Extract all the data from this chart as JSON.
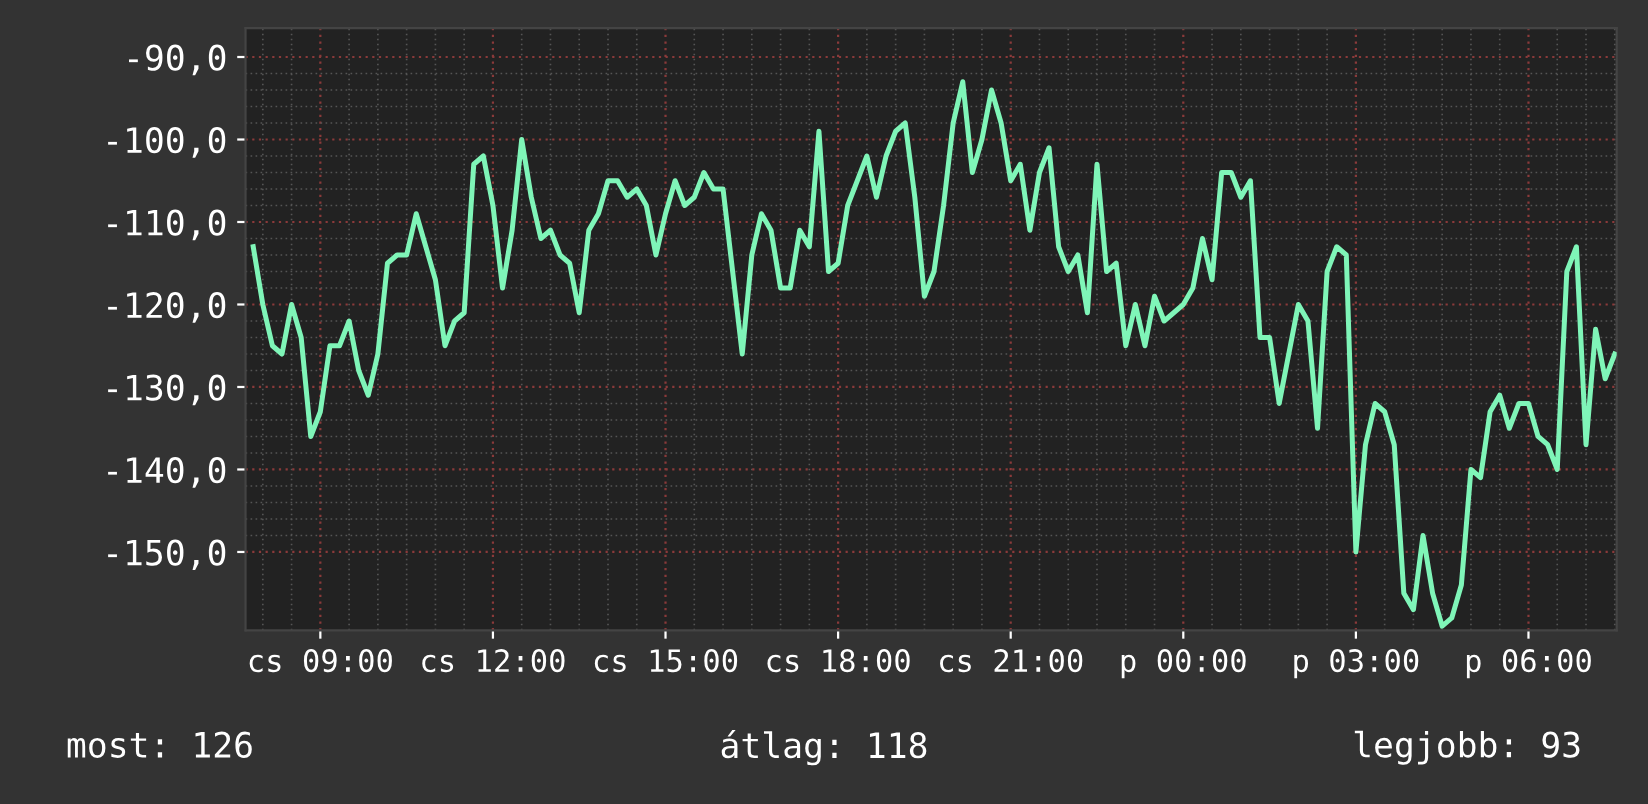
{
  "chart_data": {
    "type": "line",
    "categories": [
      null,
      null,
      null,
      null,
      null,
      null,
      null,
      "cs 09:00",
      null,
      null,
      null,
      null,
      null,
      null,
      null,
      null,
      null,
      null,
      null,
      null,
      null,
      null,
      null,
      null,
      null,
      "cs 12:00",
      null,
      null,
      null,
      null,
      null,
      null,
      null,
      null,
      null,
      null,
      null,
      null,
      null,
      null,
      null,
      null,
      null,
      "cs 15:00",
      null,
      null,
      null,
      null,
      null,
      null,
      null,
      null,
      null,
      null,
      null,
      null,
      null,
      null,
      null,
      null,
      null,
      "cs 18:00",
      null,
      null,
      null,
      null,
      null,
      null,
      null,
      null,
      null,
      null,
      null,
      null,
      null,
      null,
      null,
      null,
      null,
      "cs 21:00",
      null,
      null,
      null,
      null,
      null,
      null,
      null,
      null,
      null,
      null,
      null,
      null,
      null,
      null,
      null,
      null,
      null,
      "p 00:00",
      null,
      null,
      null,
      null,
      null,
      null,
      null,
      null,
      null,
      null,
      null,
      null,
      null,
      null,
      null,
      null,
      null,
      "p 03:00",
      null,
      null,
      null,
      null,
      null,
      null,
      null,
      null,
      null,
      null,
      null,
      null,
      null,
      null,
      null,
      null,
      null,
      "p 06:00",
      null,
      null,
      null,
      null,
      null,
      null,
      null,
      null,
      null
    ],
    "series": [
      {
        "color": "#7ff5b8",
        "values": [
          -113,
          -120,
          -125,
          -126,
          -120,
          -124,
          -136,
          -133,
          -125,
          -125,
          -122,
          -128,
          -131,
          -126,
          -115,
          -114,
          -114,
          -109,
          -113,
          -117,
          -125,
          -122,
          -121,
          -103,
          -102,
          -108,
          -118,
          -111,
          -100,
          -107,
          -112,
          -111,
          -114,
          -115,
          -121,
          -111,
          -109,
          -105,
          -105,
          -107,
          -106,
          -108,
          -114,
          -109,
          -105,
          -108,
          -107,
          -104,
          -106,
          -106,
          -116,
          -126,
          -114,
          -109,
          -111,
          -118,
          -118,
          -111,
          -113,
          -99,
          -116,
          -115,
          -108,
          -105,
          -102,
          -107,
          -102,
          -99,
          -98,
          -107,
          -119,
          -116,
          -108,
          -98,
          -93,
          -104,
          -100,
          -94,
          -98,
          -105,
          -103,
          -111,
          -104,
          -101,
          -113,
          -116,
          -114,
          -121,
          -103,
          -116,
          -115,
          -125,
          -120,
          -125,
          -119,
          -122,
          -121,
          -120,
          -118,
          -112,
          -117,
          -104,
          -104,
          -107,
          -105,
          -124,
          -124,
          -132,
          -126,
          -120,
          -122,
          -135,
          -116,
          -113,
          -114,
          -150,
          -137,
          -132,
          -133,
          -137,
          -155,
          -157,
          -148,
          -155,
          -159,
          -158,
          -154,
          -140,
          -141,
          -133,
          -131,
          -135,
          -132,
          -132,
          -136,
          -137,
          -140,
          -116,
          -113,
          -137,
          -123,
          -129,
          -126
        ]
      }
    ],
    "ylim": [
      -159.5,
      -86.5
    ],
    "yticks": [
      {
        "value": -150,
        "label": "-150,0"
      },
      {
        "value": -140,
        "label": "-140,0"
      },
      {
        "value": -130,
        "label": "-130,0"
      },
      {
        "value": -120,
        "label": "-120,0"
      },
      {
        "value": -110,
        "label": "-110,0"
      },
      {
        "value": -100,
        "label": "-100,0"
      },
      {
        "value": -90,
        "label": "-90,0"
      }
    ],
    "grid": true,
    "annotations": [
      "most: 126",
      "átlag: 118",
      "legjobb: 93"
    ]
  }
}
